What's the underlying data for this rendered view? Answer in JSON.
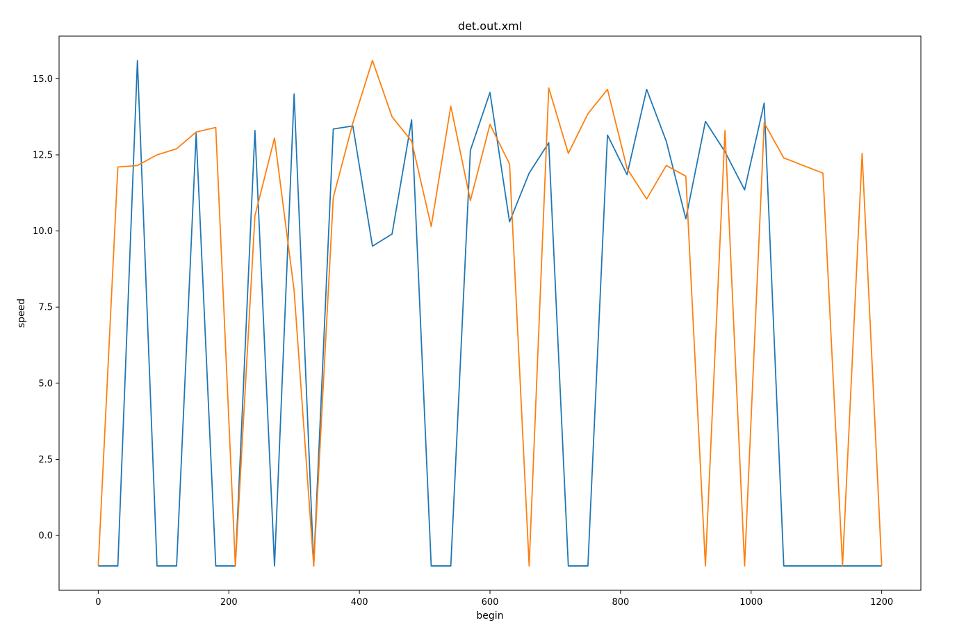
{
  "chart_data": {
    "type": "line",
    "title": "det.out.xml",
    "xlabel": "begin",
    "ylabel": "speed",
    "xlim": [
      -60,
      1260
    ],
    "ylim": [
      -1.8,
      16.4
    ],
    "xticks": [
      0,
      200,
      400,
      600,
      800,
      1000,
      1200
    ],
    "xtick_labels": [
      "0",
      "200",
      "400",
      "600",
      "800",
      "1000",
      "1200"
    ],
    "yticks": [
      0.0,
      2.5,
      5.0,
      7.5,
      10.0,
      12.5,
      15.0
    ],
    "ytick_labels": [
      "0.0",
      "2.5",
      "5.0",
      "7.5",
      "10.0",
      "12.5",
      "15.0"
    ],
    "grid": false,
    "legend": "none",
    "x": [
      0,
      30,
      60,
      90,
      120,
      150,
      180,
      210,
      240,
      270,
      300,
      330,
      360,
      390,
      420,
      450,
      480,
      510,
      540,
      570,
      600,
      630,
      660,
      690,
      720,
      750,
      780,
      810,
      840,
      870,
      900,
      930,
      960,
      990,
      1020,
      1050,
      1080,
      1110,
      1140,
      1170,
      1200
    ],
    "series": [
      {
        "color": "#1f77b4",
        "values": [
          -1,
          -1,
          15.6,
          -1,
          -1,
          13.2,
          -1,
          -1,
          13.3,
          -1,
          14.5,
          -1,
          13.35,
          13.45,
          9.5,
          9.9,
          13.65,
          -1,
          -1,
          12.65,
          14.55,
          10.3,
          11.9,
          12.9,
          -1,
          -1,
          13.15,
          11.85,
          14.65,
          12.95,
          10.4,
          13.6,
          12.6,
          11.35,
          14.2,
          -1,
          -1,
          -1,
          -1,
          -1,
          -1
        ]
      },
      {
        "color": "#ff7f0e",
        "values": [
          -1,
          12.1,
          12.15,
          12.5,
          12.7,
          13.25,
          13.4,
          -1,
          10.5,
          13.05,
          8.05,
          -1,
          11.1,
          13.55,
          15.6,
          13.75,
          12.95,
          10.15,
          14.1,
          11,
          13.5,
          12.2,
          -1,
          14.7,
          12.55,
          13.85,
          14.65,
          12.05,
          11.05,
          12.15,
          11.8,
          -1,
          13.3,
          -1,
          13.55,
          12.4,
          12.15,
          11.9,
          -1,
          12.55,
          -1
        ]
      }
    ]
  }
}
